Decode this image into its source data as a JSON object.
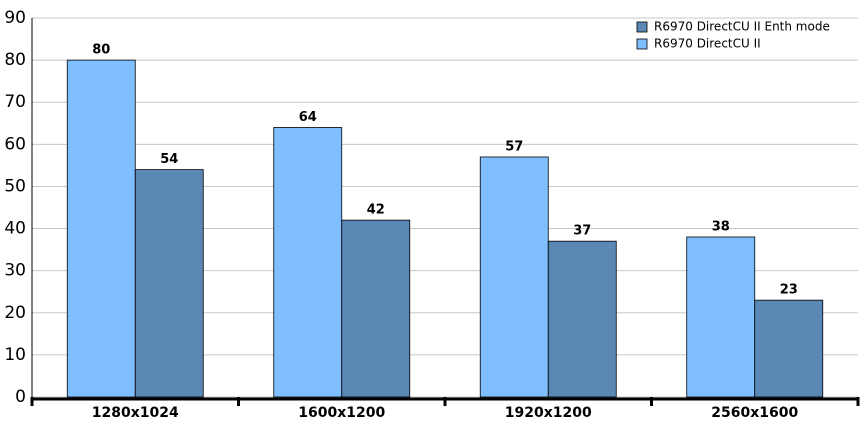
{
  "chart_data": {
    "type": "bar",
    "categories": [
      "1280x1024",
      "1600x1200",
      "1920x1200",
      "2560x1600"
    ],
    "series": [
      {
        "name": "R6970 DirectCU II",
        "color": "#80bfff",
        "values": [
          80,
          64,
          57,
          38
        ]
      },
      {
        "name": "R6970 DirectCU II Enth mode",
        "color": "#5b87b5",
        "values": [
          54,
          42,
          37,
          23
        ]
      }
    ],
    "ylim": [
      0,
      90
    ],
    "yticks": [
      0,
      10,
      20,
      30,
      40,
      50,
      60,
      70,
      80,
      90
    ],
    "grid": true
  }
}
